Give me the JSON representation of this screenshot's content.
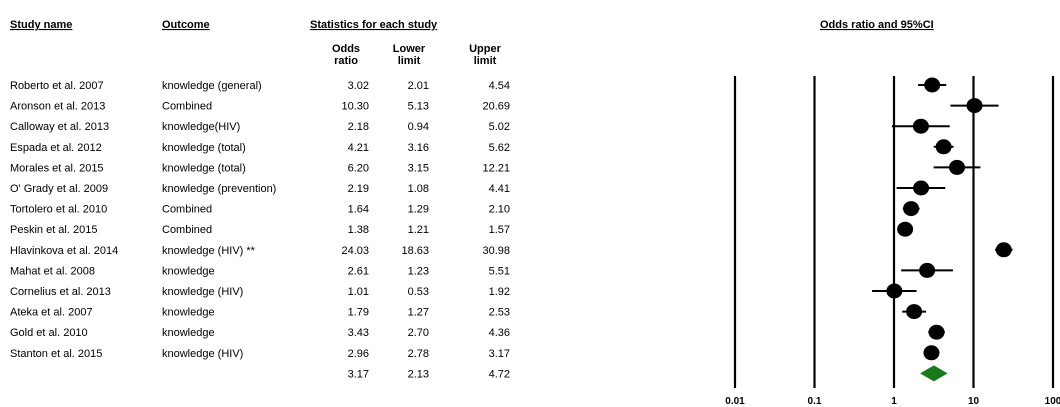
{
  "chart_data": {
    "type": "forest",
    "headers": {
      "study_name": "Study name",
      "outcome": "Outcome",
      "stats": "Statistics for each study",
      "odds_ratio": [
        "Odds",
        "ratio"
      ],
      "lower_limit": [
        "Lower",
        "limit"
      ],
      "upper_limit": [
        "Upper",
        "limit"
      ],
      "plot_title": "Odds ratio and 95%CI"
    },
    "studies": [
      {
        "name": "Roberto et al. 2007",
        "outcome": "knowledge (general)",
        "or": 3.02,
        "lower": 2.01,
        "upper": 4.54,
        "or_text": "3.02",
        "lower_text": "2.01",
        "upper_text": "4.54"
      },
      {
        "name": "Aronson et al. 2013",
        "outcome": "Combined",
        "or": 10.3,
        "lower": 5.13,
        "upper": 20.69,
        "or_text": "10.30",
        "lower_text": "5.13",
        "upper_text": "20.69"
      },
      {
        "name": "Calloway et al. 2013",
        "outcome": "knowledge(HIV)",
        "or": 2.18,
        "lower": 0.94,
        "upper": 5.02,
        "or_text": "2.18",
        "lower_text": "0.94",
        "upper_text": "5.02"
      },
      {
        "name": "Espada et al. 2012",
        "outcome": "knowledge (total)",
        "or": 4.21,
        "lower": 3.16,
        "upper": 5.62,
        "or_text": "4.21",
        "lower_text": "3.16",
        "upper_text": "5.62"
      },
      {
        "name": "Morales et al. 2015",
        "outcome": "knowledge (total)",
        "or": 6.2,
        "lower": 3.15,
        "upper": 12.21,
        "or_text": "6.20",
        "lower_text": "3.15",
        "upper_text": "12.21"
      },
      {
        "name": "O' Grady et al. 2009",
        "outcome": "knowledge (prevention)",
        "or": 2.19,
        "lower": 1.08,
        "upper": 4.41,
        "or_text": "2.19",
        "lower_text": "1.08",
        "upper_text": "4.41"
      },
      {
        "name": "Tortolero et al. 2010",
        "outcome": "Combined",
        "or": 1.64,
        "lower": 1.29,
        "upper": 2.1,
        "or_text": "1.64",
        "lower_text": "1.29",
        "upper_text": "2.10"
      },
      {
        "name": "Peskin et al. 2015",
        "outcome": "Combined",
        "or": 1.38,
        "lower": 1.21,
        "upper": 1.57,
        "or_text": "1.38",
        "lower_text": "1.21",
        "upper_text": "1.57"
      },
      {
        "name": "Hlavinkova et al. 2014",
        "outcome": "knowledge (HIV) **",
        "or": 24.03,
        "lower": 18.63,
        "upper": 30.98,
        "or_text": "24.03",
        "lower_text": "18.63",
        "upper_text": "30.98"
      },
      {
        "name": "Mahat et al. 2008",
        "outcome": "knowledge",
        "or": 2.61,
        "lower": 1.23,
        "upper": 5.51,
        "or_text": "2.61",
        "lower_text": "1.23",
        "upper_text": "5.51"
      },
      {
        "name": "Cornelius et al. 2013",
        "outcome": "knowledge (HIV)",
        "or": 1.01,
        "lower": 0.53,
        "upper": 1.92,
        "or_text": "1.01",
        "lower_text": "0.53",
        "upper_text": "1.92"
      },
      {
        "name": "Ateka et al. 2007",
        "outcome": "knowledge",
        "or": 1.79,
        "lower": 1.27,
        "upper": 2.53,
        "or_text": "1.79",
        "lower_text": "1.27",
        "upper_text": "2.53"
      },
      {
        "name": "Gold et al. 2010",
        "outcome": "knowledge",
        "or": 3.43,
        "lower": 2.7,
        "upper": 4.36,
        "or_text": "3.43",
        "lower_text": "2.70",
        "upper_text": "4.36"
      },
      {
        "name": "Stanton et al. 2015",
        "outcome": "knowledge (HIV)",
        "or": 2.96,
        "lower": 2.78,
        "upper": 3.17,
        "or_text": "2.96",
        "lower_text": "2.78",
        "upper_text": "3.17"
      }
    ],
    "summary": {
      "or": 3.17,
      "lower": 2.13,
      "upper": 4.72,
      "or_text": "3.17",
      "lower_text": "2.13",
      "upper_text": "4.72"
    },
    "x_axis": {
      "scale": "log",
      "range": [
        0.01,
        100
      ],
      "ticks": [
        0.01,
        0.1,
        1,
        10,
        100
      ],
      "tick_labels": [
        "0.01",
        "0.1",
        "1",
        "10",
        "100"
      ]
    },
    "colors": {
      "marker": "#000000",
      "summary": "#1a7a1a",
      "line": "#000000"
    }
  }
}
